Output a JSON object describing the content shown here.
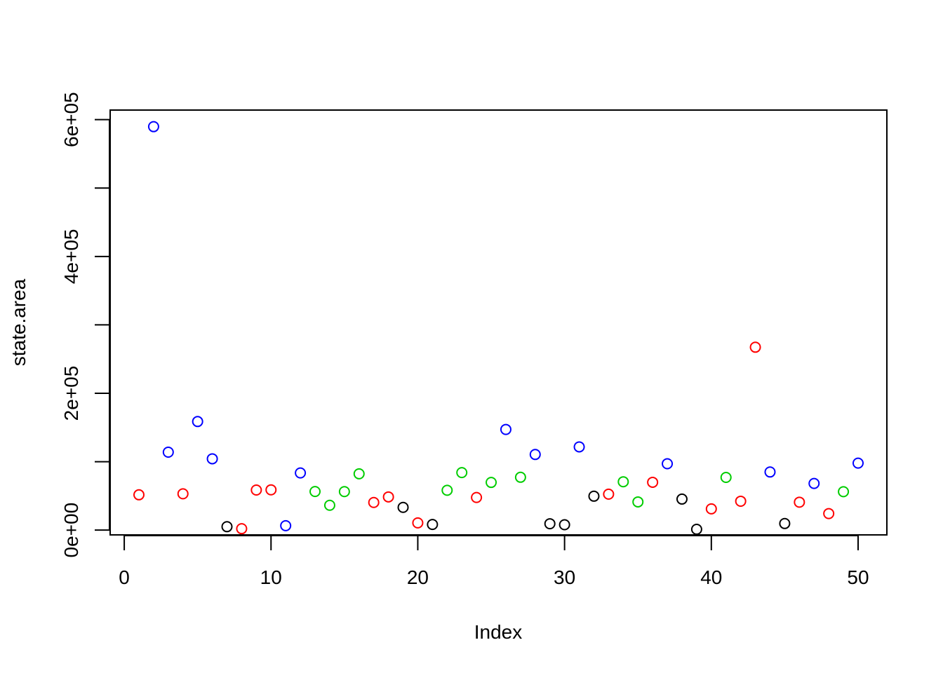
{
  "chart_data": {
    "type": "scatter",
    "title": "",
    "xlabel": "Index",
    "ylabel": "state.area",
    "xlim": [
      -0.96,
      51.96
    ],
    "ylim": [
      -7000,
      614000
    ],
    "x_ticks": [
      0,
      10,
      20,
      30,
      40,
      50
    ],
    "x_tick_labels": [
      "0",
      "10",
      "20",
      "30",
      "40",
      "50"
    ],
    "y_ticks": [
      0,
      100000,
      200000,
      300000,
      400000,
      500000,
      600000
    ],
    "y_tick_labels": [
      "0e+00",
      "",
      "2e+05",
      "",
      "4e+05",
      "",
      "6e+05"
    ],
    "grid": false,
    "legend": "none",
    "marker": "open-circle",
    "colors": {
      "black": "#000000",
      "red": "#ff0000",
      "green": "#00cd00",
      "blue": "#0000ff"
    },
    "points": [
      {
        "x": 1,
        "y": 51609,
        "color": "red"
      },
      {
        "x": 2,
        "y": 589757,
        "color": "blue"
      },
      {
        "x": 3,
        "y": 113909,
        "color": "blue"
      },
      {
        "x": 4,
        "y": 53104,
        "color": "red"
      },
      {
        "x": 5,
        "y": 158693,
        "color": "blue"
      },
      {
        "x": 6,
        "y": 104247,
        "color": "blue"
      },
      {
        "x": 7,
        "y": 5009,
        "color": "black"
      },
      {
        "x": 8,
        "y": 2057,
        "color": "red"
      },
      {
        "x": 9,
        "y": 58560,
        "color": "red"
      },
      {
        "x": 10,
        "y": 58876,
        "color": "red"
      },
      {
        "x": 11,
        "y": 6450,
        "color": "blue"
      },
      {
        "x": 12,
        "y": 83557,
        "color": "blue"
      },
      {
        "x": 13,
        "y": 56400,
        "color": "green"
      },
      {
        "x": 14,
        "y": 36291,
        "color": "green"
      },
      {
        "x": 15,
        "y": 56290,
        "color": "green"
      },
      {
        "x": 16,
        "y": 82264,
        "color": "green"
      },
      {
        "x": 17,
        "y": 40395,
        "color": "red"
      },
      {
        "x": 18,
        "y": 48523,
        "color": "red"
      },
      {
        "x": 19,
        "y": 33215,
        "color": "black"
      },
      {
        "x": 20,
        "y": 10577,
        "color": "red"
      },
      {
        "x": 21,
        "y": 8257,
        "color": "black"
      },
      {
        "x": 22,
        "y": 58216,
        "color": "green"
      },
      {
        "x": 23,
        "y": 84068,
        "color": "green"
      },
      {
        "x": 24,
        "y": 47716,
        "color": "red"
      },
      {
        "x": 25,
        "y": 69686,
        "color": "green"
      },
      {
        "x": 26,
        "y": 147138,
        "color": "blue"
      },
      {
        "x": 27,
        "y": 77227,
        "color": "green"
      },
      {
        "x": 28,
        "y": 110540,
        "color": "blue"
      },
      {
        "x": 29,
        "y": 9304,
        "color": "black"
      },
      {
        "x": 30,
        "y": 7836,
        "color": "black"
      },
      {
        "x": 31,
        "y": 121666,
        "color": "blue"
      },
      {
        "x": 32,
        "y": 49576,
        "color": "black"
      },
      {
        "x": 33,
        "y": 52586,
        "color": "red"
      },
      {
        "x": 34,
        "y": 70665,
        "color": "green"
      },
      {
        "x": 35,
        "y": 41222,
        "color": "green"
      },
      {
        "x": 36,
        "y": 69919,
        "color": "red"
      },
      {
        "x": 37,
        "y": 96981,
        "color": "blue"
      },
      {
        "x": 38,
        "y": 45333,
        "color": "black"
      },
      {
        "x": 39,
        "y": 1214,
        "color": "black"
      },
      {
        "x": 40,
        "y": 31055,
        "color": "red"
      },
      {
        "x": 41,
        "y": 77047,
        "color": "green"
      },
      {
        "x": 42,
        "y": 42244,
        "color": "red"
      },
      {
        "x": 43,
        "y": 267339,
        "color": "red"
      },
      {
        "x": 44,
        "y": 84916,
        "color": "blue"
      },
      {
        "x": 45,
        "y": 9609,
        "color": "black"
      },
      {
        "x": 46,
        "y": 40815,
        "color": "red"
      },
      {
        "x": 47,
        "y": 68192,
        "color": "blue"
      },
      {
        "x": 48,
        "y": 24181,
        "color": "red"
      },
      {
        "x": 49,
        "y": 56154,
        "color": "green"
      },
      {
        "x": 50,
        "y": 97914,
        "color": "blue"
      }
    ]
  }
}
